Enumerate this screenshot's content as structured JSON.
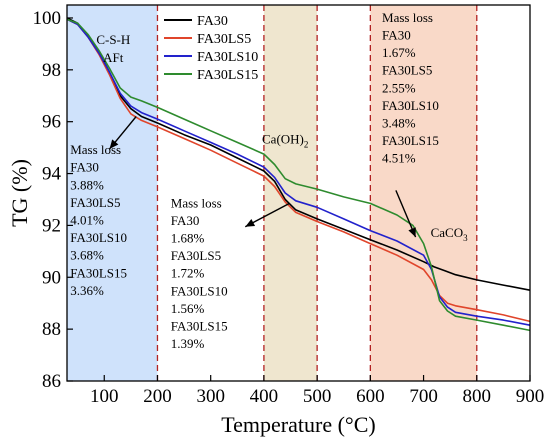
{
  "chart_data": {
    "type": "line",
    "xlabel": "Temperature (°C)",
    "ylabel": "TG (%)",
    "xlim": [
      30,
      900
    ],
    "ylim": [
      86,
      100.5
    ],
    "xticks": [
      100,
      200,
      300,
      400,
      500,
      600,
      700,
      800,
      900
    ],
    "yticks": [
      86,
      88,
      90,
      92,
      94,
      96,
      98,
      100
    ],
    "legend_position": "top-center",
    "bands": [
      {
        "x0": 30,
        "x1": 200,
        "color": "#cfe2fb"
      },
      {
        "x0": 400,
        "x1": 500,
        "color": "#efe6cf"
      },
      {
        "x0": 600,
        "x1": 800,
        "color": "#f9d9c8"
      }
    ],
    "guides_x": [
      200,
      400,
      500,
      600,
      800
    ],
    "guide_color": "#b22222",
    "series": [
      {
        "name": "FA30",
        "color": "#000000",
        "x": [
          30,
          50,
          70,
          90,
          110,
          130,
          150,
          170,
          200,
          250,
          300,
          350,
          400,
          420,
          440,
          460,
          500,
          550,
          600,
          650,
          700,
          720,
          740,
          760,
          800,
          850,
          900
        ],
        "y": [
          100.0,
          99.8,
          99.3,
          98.7,
          97.9,
          97.0,
          96.5,
          96.2,
          95.95,
          95.5,
          95.1,
          94.6,
          94.1,
          93.7,
          93.0,
          92.6,
          92.25,
          91.85,
          91.45,
          91.05,
          90.6,
          90.4,
          90.25,
          90.1,
          89.9,
          89.7,
          89.5
        ]
      },
      {
        "name": "FA30LS5",
        "color": "#e0452b",
        "x": [
          30,
          50,
          70,
          90,
          110,
          130,
          150,
          170,
          200,
          250,
          300,
          350,
          400,
          420,
          440,
          460,
          500,
          550,
          600,
          650,
          700,
          715,
          730,
          745,
          760,
          800,
          850,
          900
        ],
        "y": [
          99.95,
          99.75,
          99.25,
          98.6,
          97.8,
          96.9,
          96.3,
          96.05,
          95.8,
          95.35,
          94.9,
          94.4,
          93.9,
          93.5,
          92.9,
          92.5,
          92.15,
          91.75,
          91.3,
          90.85,
          90.3,
          89.9,
          89.3,
          89.0,
          88.9,
          88.75,
          88.55,
          88.3
        ]
      },
      {
        "name": "FA30LS10",
        "color": "#2222cc",
        "x": [
          30,
          50,
          70,
          90,
          110,
          130,
          150,
          170,
          200,
          250,
          300,
          350,
          400,
          420,
          440,
          460,
          500,
          550,
          600,
          650,
          700,
          715,
          730,
          745,
          760,
          800,
          850,
          900
        ],
        "y": [
          99.95,
          99.75,
          99.25,
          98.65,
          97.9,
          97.1,
          96.6,
          96.35,
          96.1,
          95.65,
          95.2,
          94.75,
          94.25,
          93.85,
          93.25,
          92.95,
          92.7,
          92.25,
          91.8,
          91.4,
          90.85,
          90.3,
          89.25,
          88.85,
          88.65,
          88.5,
          88.35,
          88.15
        ]
      },
      {
        "name": "FA30LS15",
        "color": "#2e8b2e",
        "x": [
          30,
          50,
          70,
          90,
          110,
          130,
          150,
          170,
          200,
          250,
          300,
          350,
          400,
          420,
          440,
          460,
          500,
          550,
          600,
          650,
          680,
          700,
          715,
          730,
          745,
          760,
          800,
          850,
          900
        ],
        "y": [
          99.95,
          99.8,
          99.35,
          98.75,
          98.05,
          97.3,
          96.95,
          96.8,
          96.55,
          96.1,
          95.65,
          95.2,
          94.75,
          94.35,
          93.8,
          93.6,
          93.4,
          93.1,
          92.85,
          92.4,
          92.0,
          91.3,
          90.4,
          89.1,
          88.7,
          88.5,
          88.35,
          88.15,
          87.95
        ]
      }
    ],
    "annotations": [
      {
        "label": "C-S-H",
        "x": 117,
        "y": 99.0
      },
      {
        "label": "AFt",
        "x": 117,
        "y": 98.3
      },
      {
        "label": "Ca(OH)",
        "sub": "2",
        "x": 440,
        "y": 95.15
      },
      {
        "label": "CaCO",
        "sub": "3",
        "x": 748,
        "y": 91.55
      }
    ],
    "mass_loss_blocks": [
      {
        "lines": [
          "Mass loss",
          "FA30",
          "3.88%",
          "FA30LS5",
          "4.01%",
          "FA30LS10",
          "3.68%",
          "FA30LS15",
          "3.36%"
        ],
        "x": 36,
        "y": 94.75
      },
      {
        "lines": [
          "Mass loss",
          "FA30",
          "1.68%",
          "FA30LS5",
          "1.72%",
          "FA30LS10",
          "1.56%",
          "FA30LS15",
          "1.39%"
        ],
        "x": 225,
        "y": 92.7
      },
      {
        "lines": [
          "Mass loss",
          "FA30",
          "1.67%",
          "FA30LS5",
          "2.55%",
          "FA30LS10",
          "3.48%",
          "FA30LS15",
          "4.51%"
        ],
        "x": 622,
        "y": 99.85
      }
    ],
    "arrows": [
      {
        "from": [
          160,
          96.2
        ],
        "to": [
          110,
          94.95
        ]
      },
      {
        "from": [
          448,
          92.85
        ],
        "to": [
          365,
          91.95
        ]
      },
      {
        "from": [
          648,
          93.35
        ],
        "to": [
          685,
          91.55
        ]
      }
    ]
  }
}
